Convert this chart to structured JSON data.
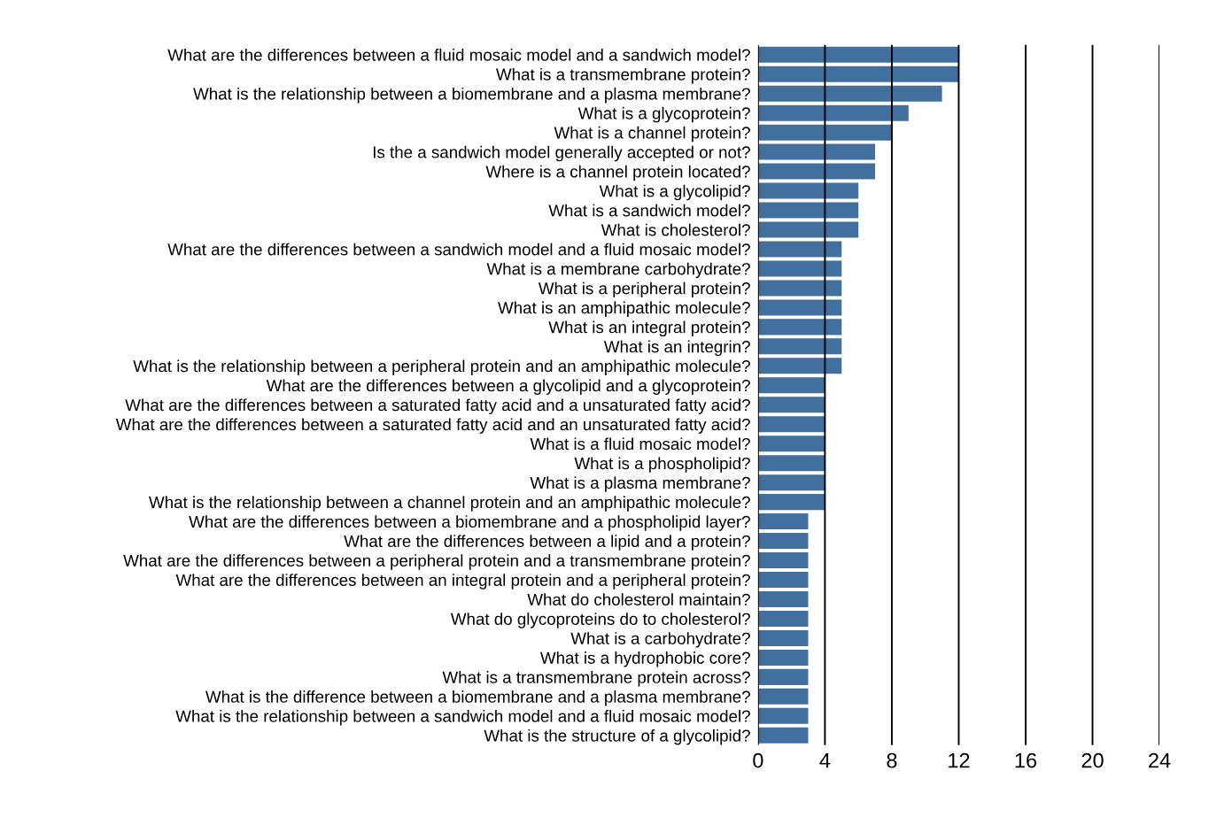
{
  "chart_data": {
    "type": "bar",
    "orientation": "horizontal",
    "categories": [
      "What are the differences between a fluid mosaic model and a sandwich model?",
      "What is a transmembrane protein?",
      "What is the relationship between a biomembrane and a plasma membrane?",
      "What is a glycoprotein?",
      "What is a channel protein?",
      "Is the a sandwich model generally accepted or not?",
      "Where is a channel protein located?",
      "What is a glycolipid?",
      "What is a sandwich model?",
      "What is cholesterol?",
      "What are the differences between a sandwich model and a fluid mosaic model?",
      "What is a membrane carbohydrate?",
      "What is a peripheral protein?",
      "What is an amphipathic molecule?",
      "What is an integral protein?",
      "What is an integrin?",
      "What is the relationship between a peripheral protein and an amphipathic molecule?",
      "What are the differences between a glycolipid and a glycoprotein?",
      "What are the differences between a saturated fatty acid and a unsaturated fatty acid?",
      "What are the differences between a saturated fatty acid and an unsaturated fatty acid?",
      "What is a fluid mosaic model?",
      "What is a phospholipid?",
      "What is a plasma membrane?",
      "What is the relationship between a channel protein and an amphipathic molecule?",
      "What are the differences between a biomembrane and a phospholipid layer?",
      "What are the differences between a lipid and a protein?",
      "What are the differences between a peripheral protein and a transmembrane protein?",
      "What are the differences between an integral protein and a peripheral protein?",
      "What do cholesterol maintain?",
      "What do glycoproteins do to cholesterol?",
      "What is a carbohydrate?",
      "What is a hydrophobic core?",
      "What is a transmembrane protein across?",
      "What is the difference between a biomembrane and a plasma membrane?",
      "What is the relationship between a sandwich model and a fluid mosaic model?",
      "What is the structure of a glycolipid?"
    ],
    "values": [
      12,
      12,
      11,
      9,
      8,
      7,
      7,
      6,
      6,
      6,
      5,
      5,
      5,
      5,
      5,
      5,
      5,
      4,
      4,
      4,
      4,
      4,
      4,
      4,
      3,
      3,
      3,
      3,
      3,
      3,
      3,
      3,
      3,
      3,
      3,
      3
    ],
    "color": "#41709f",
    "xlim": [
      0,
      24
    ],
    "xticks": [
      0,
      4,
      8,
      12,
      16,
      20,
      24
    ],
    "grid": "x"
  }
}
